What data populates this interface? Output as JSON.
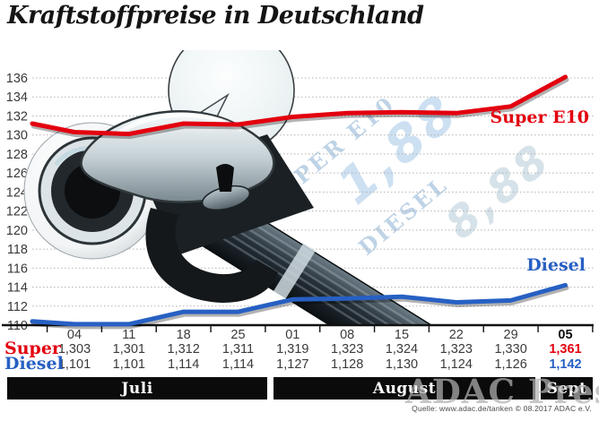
{
  "title": "Kraftstoffpreise in Deutschland",
  "watermark": "ADAC Presse",
  "source": "Quelle: www.adac.de/tanken   © 08.2017   ADAC e.V.",
  "colors": {
    "super_red": "#e3000f",
    "diesel_blue": "#2760c3",
    "axis_black": "#111111",
    "grid_grey": "#b3b3b3",
    "table_text": "#3a3a3a",
    "month_bar_bg": "#0b0b0b"
  },
  "pump_display": {
    "label_super": "SUPER E10",
    "value_super": "1,88",
    "label_diesel": "DIESEL",
    "value_diesel": "8,88"
  },
  "series_labels": {
    "super": "Super E10",
    "diesel": "Diesel"
  },
  "chart_data": {
    "type": "line",
    "title": "Kraftstoffpreise in Deutschland",
    "x": [
      "04",
      "11",
      "18",
      "25",
      "01",
      "08",
      "15",
      "22",
      "29",
      "05"
    ],
    "series": [
      {
        "name": "Super E10",
        "color": "#e3000f",
        "values": [
          130.3,
          130.1,
          131.2,
          131.1,
          131.9,
          132.3,
          132.4,
          132.3,
          133.0,
          136.1
        ],
        "lead_in": 131.2
      },
      {
        "name": "Diesel",
        "color": "#2760c3",
        "values": [
          110.1,
          110.1,
          111.4,
          111.4,
          112.7,
          112.8,
          113.0,
          112.4,
          112.6,
          114.2
        ],
        "lead_in": 110.4
      }
    ],
    "ylim": [
      110,
      136
    ],
    "ytick_step": 2,
    "yticks": [
      110,
      112,
      114,
      116,
      118,
      120,
      122,
      124,
      126,
      128,
      130,
      132,
      134,
      136
    ],
    "grid": "dotted-horizontal",
    "legend_position": "inline-right"
  },
  "table": {
    "dates": [
      "04",
      "11",
      "18",
      "25",
      "01",
      "08",
      "15",
      "22",
      "29",
      "05"
    ],
    "rows": [
      {
        "label": "Super",
        "values": [
          "1,303",
          "1,301",
          "1,312",
          "1,311",
          "1,319",
          "1,323",
          "1,324",
          "1,323",
          "1,330",
          "1,361"
        ]
      },
      {
        "label": "Diesel",
        "values": [
          "1,101",
          "1,101",
          "1,114",
          "1,114",
          "1,127",
          "1,128",
          "1,130",
          "1,124",
          "1,126",
          "1,142"
        ]
      }
    ]
  },
  "months": [
    {
      "label": "Juli"
    },
    {
      "label": "August"
    },
    {
      "label": "Sept"
    }
  ]
}
